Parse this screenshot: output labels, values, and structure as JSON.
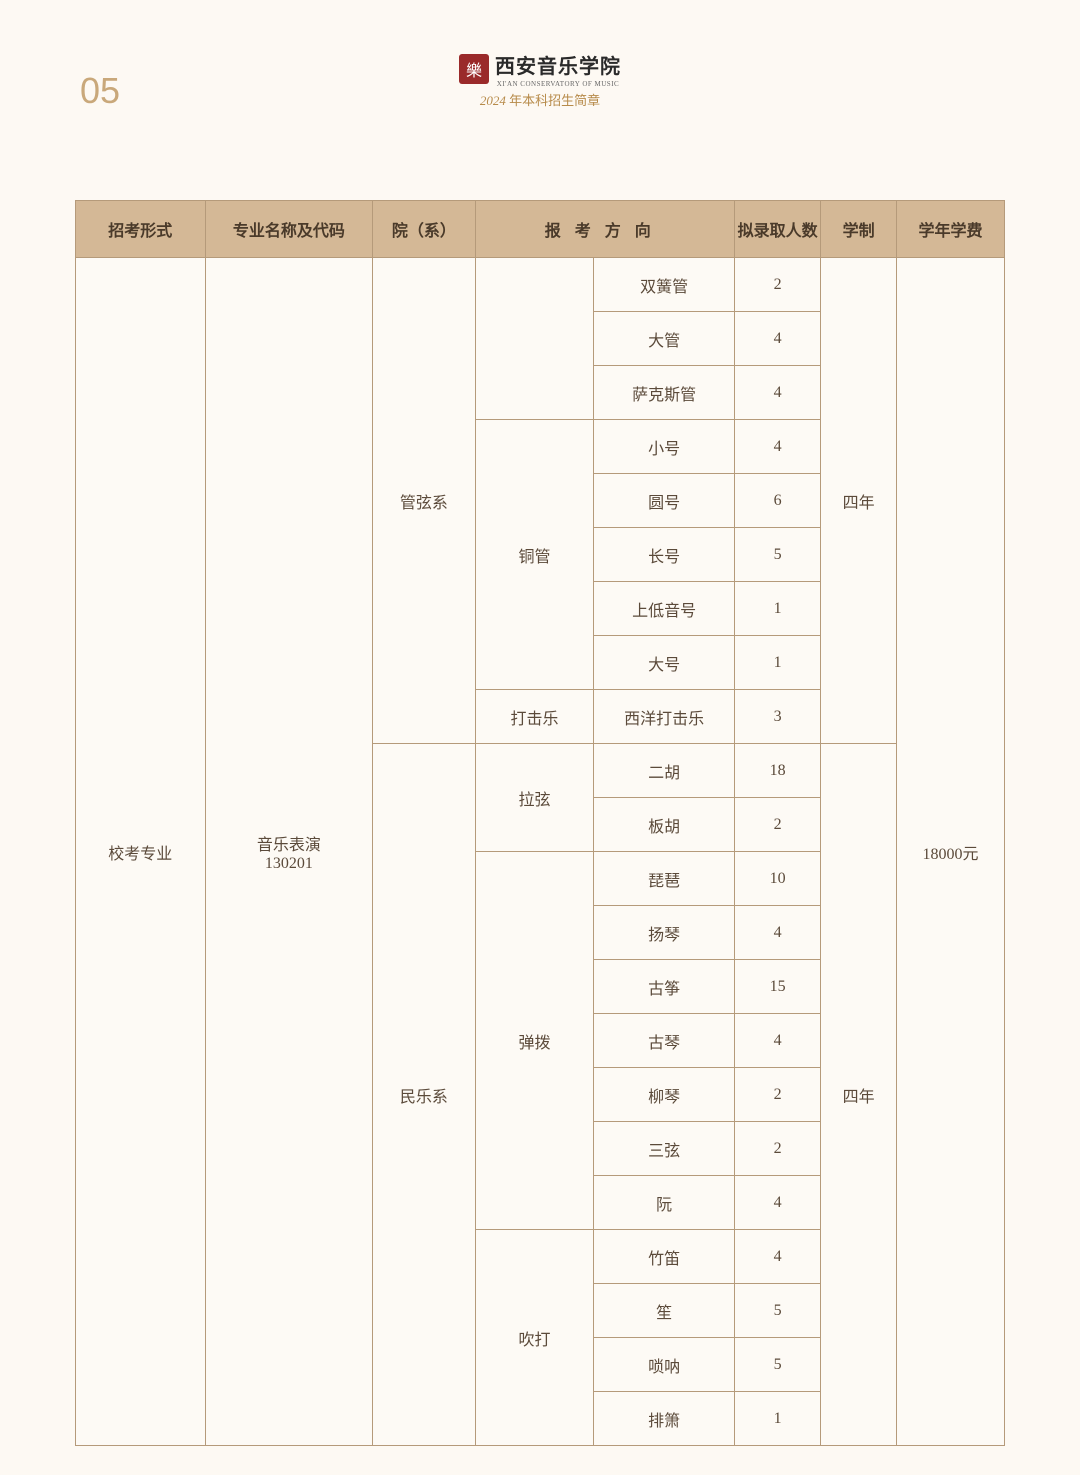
{
  "page_number": "05",
  "header": {
    "school_name": "西安音乐学院",
    "school_name_en": "XI'AN CONSERVATORY OF MUSIC",
    "year": "2024",
    "subtitle_suffix": " 年本科招生简章",
    "logo_char": "樂"
  },
  "columns": {
    "admission_type": "招考形式",
    "major_name": "专业名称及代码",
    "department": "院（系）",
    "direction": "报考方向",
    "plan_count": "拟录取人数",
    "years": "学制",
    "fee": "学年学费"
  },
  "body": {
    "admission_type": "校考专业",
    "major_line1": "音乐表演",
    "major_line2": "130201",
    "fee": "18000元",
    "dept1": {
      "name": "管弦系",
      "years": "四年",
      "groups": {
        "g0": {
          "name": "",
          "rows": {
            "r0": {
              "dir": "双簧管",
              "cnt": "2"
            },
            "r1": {
              "dir": "大管",
              "cnt": "4"
            },
            "r2": {
              "dir": "萨克斯管",
              "cnt": "4"
            }
          }
        },
        "g1": {
          "name": "铜管",
          "rows": {
            "r0": {
              "dir": "小号",
              "cnt": "4"
            },
            "r1": {
              "dir": "圆号",
              "cnt": "6"
            },
            "r2": {
              "dir": "长号",
              "cnt": "5"
            },
            "r3": {
              "dir": "上低音号",
              "cnt": "1"
            },
            "r4": {
              "dir": "大号",
              "cnt": "1"
            }
          }
        },
        "g2": {
          "name": "打击乐",
          "rows": {
            "r0": {
              "dir": "西洋打击乐",
              "cnt": "3"
            }
          }
        }
      }
    },
    "dept2": {
      "name": "民乐系",
      "years": "四年",
      "groups": {
        "g0": {
          "name": "拉弦",
          "rows": {
            "r0": {
              "dir": "二胡",
              "cnt": "18"
            },
            "r1": {
              "dir": "板胡",
              "cnt": "2"
            }
          }
        },
        "g1": {
          "name": "弹拨",
          "rows": {
            "r0": {
              "dir": "琵琶",
              "cnt": "10"
            },
            "r1": {
              "dir": "扬琴",
              "cnt": "4"
            },
            "r2": {
              "dir": "古筝",
              "cnt": "15"
            },
            "r3": {
              "dir": "古琴",
              "cnt": "4"
            },
            "r4": {
              "dir": "柳琴",
              "cnt": "2"
            },
            "r5": {
              "dir": "三弦",
              "cnt": "2"
            },
            "r6": {
              "dir": "阮",
              "cnt": "4"
            }
          }
        },
        "g2": {
          "name": "吹打",
          "rows": {
            "r0": {
              "dir": "竹笛",
              "cnt": "4"
            },
            "r1": {
              "dir": "笙",
              "cnt": "5"
            },
            "r2": {
              "dir": "唢呐",
              "cnt": "5"
            },
            "r3": {
              "dir": "排箫",
              "cnt": "1"
            }
          }
        }
      }
    }
  }
}
